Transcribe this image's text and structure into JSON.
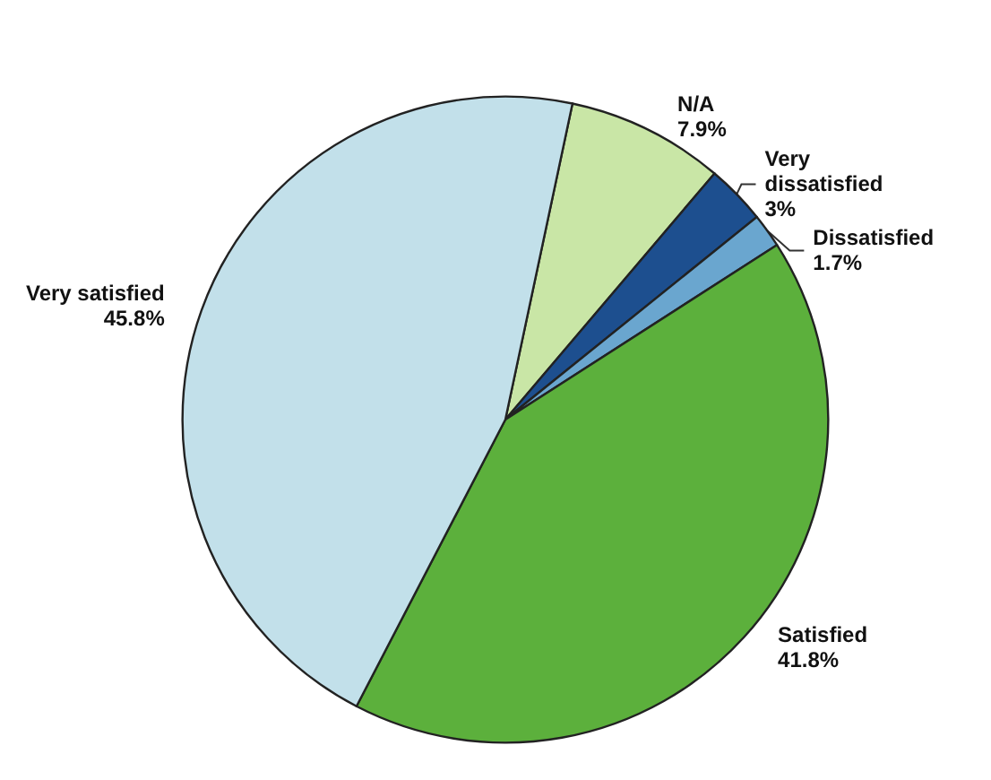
{
  "chart_data": {
    "type": "pie",
    "categories": [
      "N/A",
      "Very dissatisfied",
      "Dissatisfied",
      "Satisfied",
      "Very satisfied"
    ],
    "values": [
      7.9,
      3,
      1.7,
      41.8,
      45.8
    ],
    "colors": [
      "#c9e6a6",
      "#1d4f8f",
      "#6aa6cf",
      "#5cb03c",
      "#c2e0ea"
    ],
    "value_labels": [
      "7.9%",
      "3%",
      "1.7%",
      "41.8%",
      "45.8%"
    ]
  }
}
